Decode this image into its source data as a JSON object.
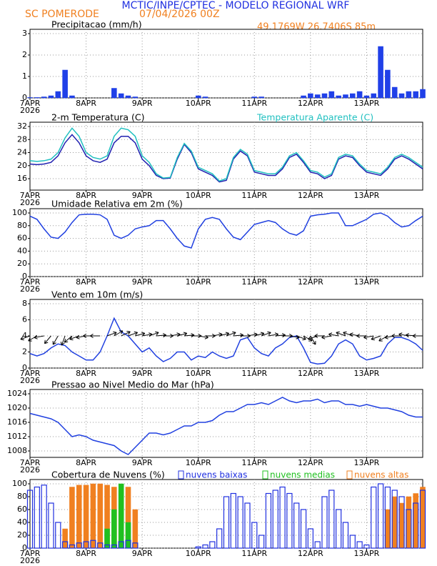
{
  "header": {
    "title": "MCTIC/INPE/CPTEC - MODELO REGIONAL WRF",
    "location": "SC POMERODE",
    "date": "07/04/2026 00Z",
    "coords": "49.1769W 26.7406S 85m"
  },
  "time_axis": {
    "xlim": [
      0,
      168
    ],
    "year": "2026",
    "xticks": [
      {
        "value": 0,
        "label": "7APR"
      },
      {
        "value": 24,
        "label": "8APR"
      },
      {
        "value": 48,
        "label": "9APR"
      },
      {
        "value": 72,
        "label": "10APR"
      },
      {
        "value": 96,
        "label": "11APR"
      },
      {
        "value": 120,
        "label": "12APR"
      },
      {
        "value": 144,
        "label": "13APR"
      }
    ],
    "x": [
      0,
      3,
      6,
      9,
      12,
      15,
      18,
      21,
      24,
      27,
      30,
      33,
      36,
      39,
      42,
      45,
      48,
      51,
      54,
      57,
      60,
      63,
      66,
      69,
      72,
      75,
      78,
      81,
      84,
      87,
      90,
      93,
      96,
      99,
      102,
      105,
      108,
      111,
      114,
      117,
      120,
      123,
      126,
      129,
      132,
      135,
      138,
      141,
      144,
      147,
      150,
      153,
      156,
      159,
      162,
      165,
      168
    ]
  },
  "chart_data": [
    {
      "type": "bar",
      "title": "Precipitacao (mm/h)",
      "color": "#2040e8",
      "ylim": [
        0,
        3
      ],
      "yticks": [
        0,
        1,
        2,
        3
      ],
      "grid": true,
      "values": [
        0.02,
        0.02,
        0.05,
        0.1,
        0.3,
        1.3,
        0.1,
        0,
        0,
        0,
        0,
        0,
        0.45,
        0.2,
        0.1,
        0.05,
        0,
        0,
        0,
        0,
        0,
        0,
        0,
        0,
        0.1,
        0.05,
        0,
        0,
        0,
        0,
        0,
        0,
        0.05,
        0.05,
        0,
        0,
        0,
        0,
        0,
        0.1,
        0.2,
        0.15,
        0.2,
        0.3,
        0.1,
        0.15,
        0.2,
        0.3,
        0.1,
        0.2,
        2.4,
        1.3,
        0.5,
        0.2,
        0.3,
        0.3,
        0.4
      ]
    },
    {
      "type": "line",
      "title": "2-m Temperatura (C)",
      "ylim": [
        12.5,
        32
      ],
      "yticks": [
        16,
        20,
        24,
        28,
        32
      ],
      "grid": true,
      "series": [
        {
          "color": "#2020b0",
          "values": [
            20.5,
            20.3,
            20.5,
            21,
            23,
            27,
            29.5,
            27,
            23,
            21.5,
            21,
            22,
            27,
            29,
            29,
            27,
            22,
            20,
            17,
            16,
            16.2,
            22,
            26.5,
            24,
            19,
            18,
            17,
            15,
            15.5,
            22,
            24.5,
            23,
            18,
            17.5,
            17,
            17,
            19,
            22.5,
            23.5,
            21,
            18,
            17.5,
            16,
            17,
            22,
            23,
            22.5,
            20,
            18,
            17.5,
            17,
            19,
            22,
            23,
            22,
            20.5,
            19
          ]
        },
        {
          "name": "Temperatura Aparente (C)",
          "color": "#20c0c0",
          "values": [
            21.5,
            21.3,
            21.5,
            22,
            24,
            28.5,
            31.5,
            29,
            24,
            22.5,
            22,
            23,
            29,
            31.5,
            31,
            29,
            23,
            21,
            17.5,
            16.2,
            16.4,
            22.5,
            26.8,
            24.5,
            19.5,
            18.5,
            17.5,
            15.3,
            16,
            22.5,
            25,
            23.5,
            18.5,
            18,
            17.5,
            17.5,
            19.5,
            23,
            24,
            21.5,
            18.5,
            18,
            16.5,
            17.5,
            22.5,
            23.5,
            23,
            20.5,
            18.5,
            18,
            17.5,
            19.5,
            22.5,
            23.5,
            22.5,
            21,
            19.5
          ]
        }
      ]
    },
    {
      "type": "line",
      "title": "Umidade Relativa em 2m (%)",
      "ylim": [
        0,
        100
      ],
      "yticks": [
        0,
        20,
        40,
        60,
        80,
        100
      ],
      "grid": true,
      "series": [
        {
          "color": "#2040e0",
          "values": [
            95,
            90,
            75,
            62,
            60,
            70,
            85,
            97,
            98,
            98,
            97,
            90,
            65,
            60,
            65,
            75,
            78,
            80,
            88,
            88,
            75,
            60,
            48,
            45,
            75,
            90,
            93,
            90,
            75,
            62,
            58,
            70,
            82,
            85,
            88,
            85,
            75,
            68,
            65,
            72,
            95,
            97,
            98,
            100,
            100,
            80,
            80,
            85,
            90,
            98,
            100,
            95,
            85,
            78,
            80,
            88,
            95
          ]
        }
      ]
    },
    {
      "type": "line",
      "title": "Vento em 10m (m/s)",
      "ylim": [
        0,
        8
      ],
      "yticks": [
        0,
        2,
        4,
        6,
        8
      ],
      "grid": true,
      "series": [
        {
          "color": "#2040e0",
          "values": [
            1.8,
            1.5,
            1.8,
            2.5,
            3,
            2.8,
            2,
            1.5,
            1,
            1,
            2,
            4,
            6.2,
            4.5,
            4,
            3,
            2,
            2.5,
            1.5,
            0.8,
            1.2,
            2,
            2,
            1,
            1.5,
            1.3,
            2,
            1.5,
            1.2,
            1.5,
            3.5,
            3.8,
            2.5,
            1.8,
            1.5,
            2.5,
            3,
            3.8,
            4,
            2.5,
            0.7,
            0.5,
            0.6,
            1.5,
            3,
            3.5,
            3,
            1.5,
            1,
            1.2,
            1.5,
            3,
            3.8,
            3.8,
            3.5,
            3,
            2.2
          ]
        }
      ],
      "wind_direction": [
        200,
        210,
        190,
        230,
        240,
        250,
        220,
        200,
        190,
        180,
        180,
        20,
        30,
        25,
        20,
        15,
        10,
        20,
        5,
        0,
        10,
        15,
        5,
        0,
        350,
        0,
        10,
        15,
        20,
        5,
        0,
        10,
        15,
        20,
        10,
        5,
        0,
        350,
        340,
        330,
        300,
        200,
        180,
        190,
        170,
        160,
        160,
        170,
        180,
        190,
        200,
        210,
        190,
        180,
        170,
        175,
        180
      ]
    },
    {
      "type": "line",
      "title": "Pressao ao Nivel Medio do Mar (hPa)",
      "ylim": [
        1006.2,
        1024
      ],
      "yticks": [
        1008,
        1012,
        1016,
        1020,
        1024
      ],
      "grid": true,
      "series": [
        {
          "color": "#2040e0",
          "values": [
            1018.5,
            1018,
            1017.5,
            1017,
            1016,
            1014,
            1012,
            1012.5,
            1012,
            1011,
            1010.5,
            1010,
            1009.5,
            1008,
            1007,
            1009,
            1011,
            1013,
            1013,
            1012.5,
            1013,
            1014,
            1015,
            1015,
            1016,
            1016,
            1016.5,
            1018,
            1019,
            1019,
            1020,
            1021,
            1021,
            1021.5,
            1021,
            1022,
            1023,
            1022,
            1021.5,
            1022,
            1022,
            1022.5,
            1021.5,
            1022,
            1022,
            1021,
            1021,
            1020.5,
            1021,
            1020.5,
            1020,
            1020,
            1019.5,
            1019,
            1018,
            1017.5,
            1017.5
          ]
        }
      ]
    },
    {
      "type": "bar",
      "title": "Cobertura de Nuvens (%)",
      "ylim": [
        0,
        100
      ],
      "yticks": [
        0,
        20,
        40,
        60,
        80,
        100
      ],
      "grid": true,
      "series": [
        {
          "name": "nuvens altas",
          "color": "#f08020",
          "values": [
            0,
            0,
            0,
            0,
            0,
            30,
            95,
            98,
            98,
            100,
            100,
            98,
            95,
            90,
            95,
            60,
            0,
            0,
            0,
            0,
            0,
            0,
            0,
            0,
            0,
            0,
            0,
            0,
            0,
            0,
            0,
            0,
            0,
            0,
            0,
            0,
            0,
            0,
            0,
            0,
            0,
            0,
            0,
            0,
            0,
            0,
            0,
            0,
            0,
            0,
            0,
            60,
            80,
            70,
            80,
            85,
            95
          ]
        },
        {
          "name": "nuvens medias",
          "color": "#20c020",
          "values": [
            0,
            0,
            0,
            0,
            0,
            0,
            0,
            0,
            0,
            0,
            0,
            30,
            60,
            100,
            40,
            0,
            0,
            0,
            0,
            0,
            0,
            0,
            0,
            0,
            0,
            0,
            0,
            0,
            0,
            0,
            0,
            0,
            0,
            0,
            0,
            0,
            0,
            0,
            0,
            0,
            0,
            0,
            0,
            0,
            0,
            0,
            0,
            0,
            0,
            0,
            0,
            0,
            0,
            0,
            0,
            0,
            0
          ]
        },
        {
          "name": "nuvens baixas",
          "color": "#2030e0",
          "hollow": true,
          "values": [
            90,
            95,
            98,
            70,
            40,
            10,
            5,
            8,
            10,
            12,
            8,
            5,
            5,
            10,
            12,
            8,
            0,
            0,
            0,
            0,
            0,
            0,
            0,
            0,
            2,
            5,
            10,
            30,
            80,
            85,
            80,
            70,
            40,
            20,
            85,
            90,
            95,
            85,
            70,
            60,
            30,
            10,
            80,
            90,
            60,
            40,
            20,
            10,
            5,
            95,
            100,
            95,
            90,
            80,
            60,
            70,
            90
          ]
        }
      ]
    }
  ]
}
